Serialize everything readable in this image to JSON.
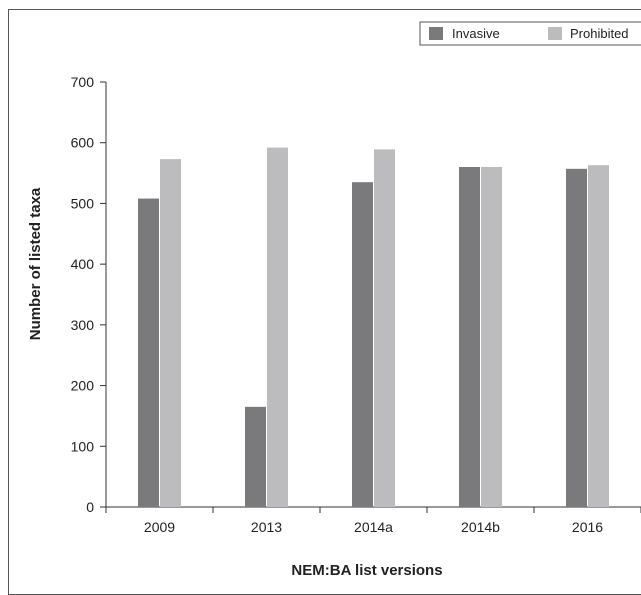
{
  "chart_data": {
    "type": "bar",
    "categories": [
      "2009",
      "2013",
      "2014a",
      "2014b",
      "2016"
    ],
    "series": [
      {
        "name": "Invasive",
        "values": [
          508,
          165,
          535,
          560,
          557
        ],
        "color": "#7a7a7c"
      },
      {
        "name": "Prohibited",
        "values": [
          573,
          592,
          589,
          560,
          563
        ],
        "color": "#bcbcbe"
      }
    ],
    "xlabel": "NEM:BA list versions",
    "ylabel": "Number of listed taxa",
    "ylim": [
      0,
      700
    ],
    "yticks": [
      0,
      100,
      200,
      300,
      400,
      500,
      600,
      700
    ],
    "grid": false,
    "legend_position": "top-right"
  }
}
